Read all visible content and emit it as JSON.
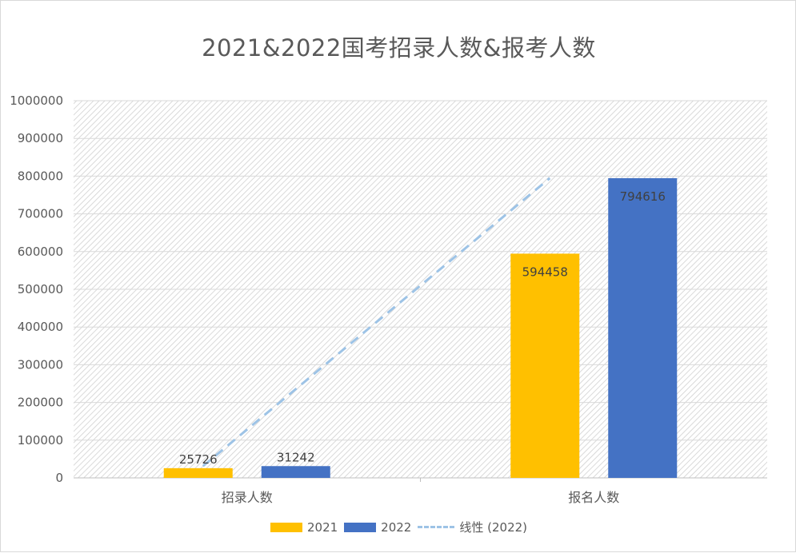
{
  "chart_data": {
    "type": "bar",
    "title": "2021&2022国考招录人数&报考人数",
    "categories": [
      "招录人数",
      "报名人数"
    ],
    "series": [
      {
        "name": "2021",
        "values": [
          25726,
          594458
        ],
        "color": "#ffc000"
      },
      {
        "name": "2022",
        "values": [
          31242,
          794616
        ],
        "color": "#4472c4"
      }
    ],
    "trendline": {
      "name": "线性 (2022)",
      "type": "linear",
      "of_series": "2022",
      "color": "#9dc3e6",
      "style": "dashed"
    },
    "ylim": [
      0,
      1000000
    ],
    "yticks": [
      "0",
      "100000",
      "200000",
      "300000",
      "400000",
      "500000",
      "600000",
      "700000",
      "800000",
      "900000",
      "1000000"
    ],
    "grid": true,
    "legend_position": "bottom",
    "data_labels": true
  }
}
